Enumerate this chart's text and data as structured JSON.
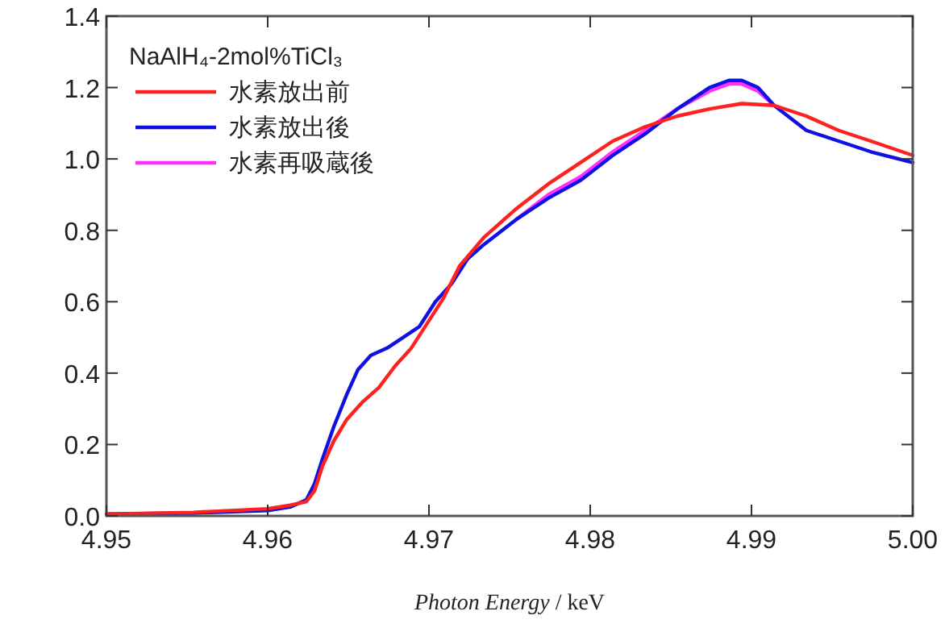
{
  "chart_data": {
    "type": "line",
    "xlabel": "Photon Energy / keV",
    "legend_title": "NaAlH₄-2mol%TiCl₃",
    "legend": "top left",
    "grid": false,
    "marker": "none",
    "line_style": "solid",
    "xlim": [
      4.95,
      5.0
    ],
    "ylim": [
      0,
      1.4
    ],
    "xticks": [
      {
        "value": 4.95,
        "label": "4.95"
      },
      {
        "value": 4.96,
        "label": "4.96"
      },
      {
        "value": 4.97,
        "label": "4.97"
      },
      {
        "value": 4.98,
        "label": "4.98"
      },
      {
        "value": 4.99,
        "label": "4.99"
      },
      {
        "value": 5.0,
        "label": "5.00"
      }
    ],
    "yticks": [
      {
        "value": 0,
        "label": "0.0"
      },
      {
        "value": 0.2,
        "label": "0.2"
      },
      {
        "value": 0.4,
        "label": "0.4"
      },
      {
        "value": 0.6,
        "label": "0.6"
      },
      {
        "value": 0.8,
        "label": "0.8"
      },
      {
        "value": 1.0,
        "label": "1.0"
      },
      {
        "value": 1.2,
        "label": "1.2"
      },
      {
        "value": 1.4,
        "label": "1.4"
      }
    ],
    "series": [
      {
        "name": "水素放出前",
        "color": "#ff2020",
        "x": [
          4.95,
          4.9554,
          4.96,
          4.9614,
          4.9624,
          4.9629,
          4.9634,
          4.9641,
          4.9649,
          4.9659,
          4.9669,
          4.9679,
          4.9689,
          4.9699,
          4.9709,
          4.9719,
          4.9734,
          4.9754,
          4.9774,
          4.9794,
          4.9814,
          4.9834,
          4.9854,
          4.9874,
          4.9894,
          4.9914,
          4.9934,
          4.9954,
          4.9974,
          5.0
        ],
        "values": [
          0.005,
          0.01,
          0.02,
          0.03,
          0.04,
          0.07,
          0.14,
          0.21,
          0.27,
          0.32,
          0.36,
          0.42,
          0.47,
          0.54,
          0.61,
          0.7,
          0.78,
          0.86,
          0.93,
          0.99,
          1.05,
          1.09,
          1.12,
          1.14,
          1.155,
          1.15,
          1.12,
          1.08,
          1.05,
          1.01
        ]
      },
      {
        "name": "水素放出後",
        "color": "#1010e0",
        "x": [
          4.95,
          4.9554,
          4.96,
          4.9614,
          4.9624,
          4.9629,
          4.9634,
          4.9641,
          4.9649,
          4.9656,
          4.9664,
          4.9674,
          4.9684,
          4.9694,
          4.9704,
          4.9714,
          4.9724,
          4.9734,
          4.9754,
          4.9774,
          4.9794,
          4.9814,
          4.9834,
          4.9854,
          4.9874,
          4.9886,
          4.9894,
          4.9904,
          4.9914,
          4.9934,
          4.9954,
          4.9974,
          5.0
        ],
        "values": [
          0.005,
          0.008,
          0.015,
          0.025,
          0.045,
          0.09,
          0.16,
          0.25,
          0.34,
          0.41,
          0.45,
          0.47,
          0.5,
          0.53,
          0.6,
          0.65,
          0.72,
          0.76,
          0.83,
          0.89,
          0.94,
          1.01,
          1.07,
          1.14,
          1.2,
          1.22,
          1.22,
          1.2,
          1.15,
          1.08,
          1.05,
          1.02,
          0.99
        ]
      },
      {
        "name": "水素再吸蔵後",
        "color": "#ff30ff",
        "x": [
          4.9754,
          4.9774,
          4.9794,
          4.9814,
          4.9834,
          4.9854,
          4.9874,
          4.9886,
          4.9894,
          4.9904,
          4.9914
        ],
        "values": [
          0.83,
          0.9,
          0.95,
          1.02,
          1.08,
          1.14,
          1.19,
          1.21,
          1.21,
          1.19,
          1.15
        ]
      }
    ]
  }
}
